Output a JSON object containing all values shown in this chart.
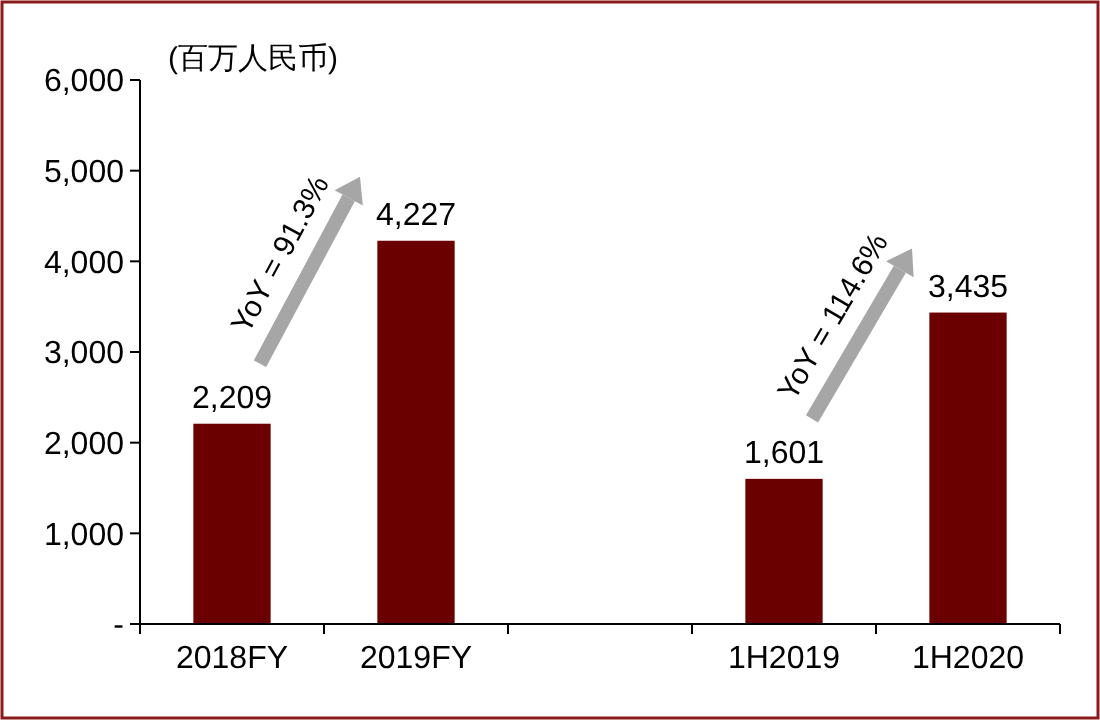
{
  "chart_data": {
    "type": "bar",
    "ylabel": "(百万人民币)",
    "categories": [
      "2018FY",
      "2019FY",
      null,
      "1H2019",
      "1H2020"
    ],
    "values": [
      2209,
      4227,
      null,
      1601,
      3435
    ],
    "value_labels": [
      "2,209",
      "4,227",
      null,
      "1,601",
      "3,435"
    ],
    "color": "#6b0000",
    "ylim": [
      0,
      6000
    ],
    "yticks": [
      {
        "value": 0,
        "label": "-"
      },
      {
        "value": 1000,
        "label": "1,000"
      },
      {
        "value": 2000,
        "label": "2,000"
      },
      {
        "value": 3000,
        "label": "3,000"
      },
      {
        "value": 4000,
        "label": "4,000"
      },
      {
        "value": 5000,
        "label": "5,000"
      },
      {
        "value": 6000,
        "label": "6,000"
      }
    ],
    "annotations": [
      "YoY = 91.3%",
      "YoY = 114.6%"
    ],
    "grid": false
  }
}
